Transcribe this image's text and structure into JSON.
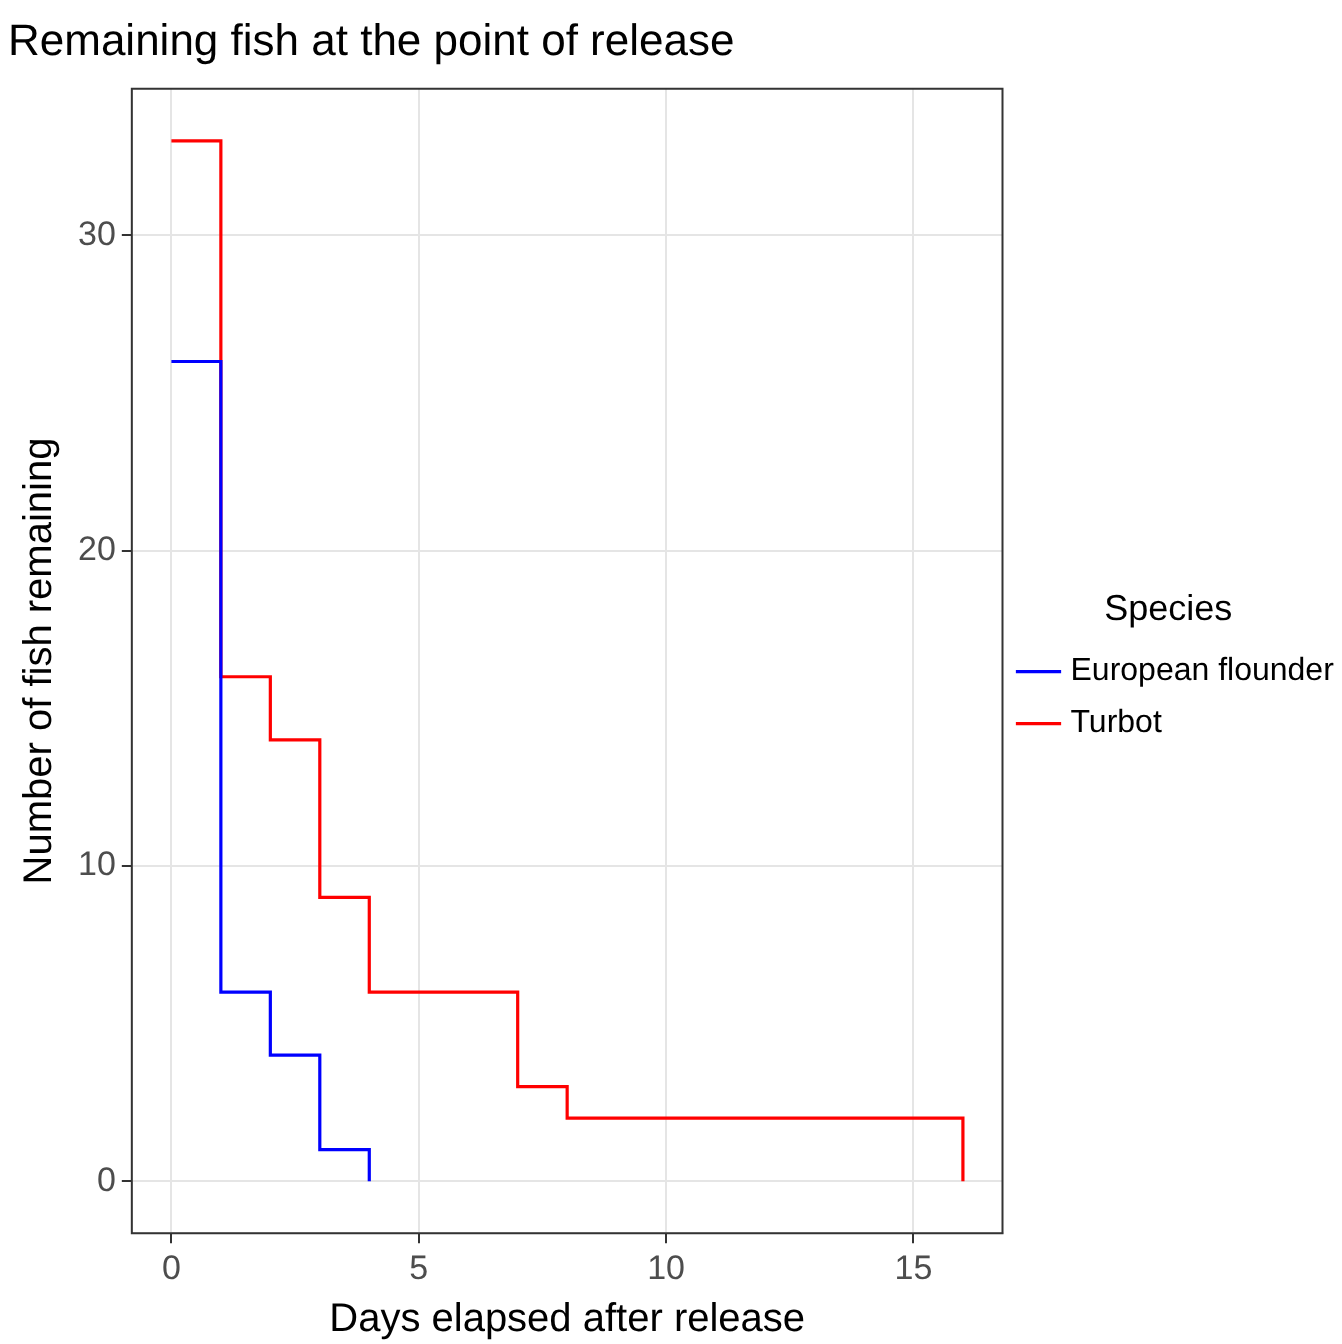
{
  "chart_data": {
    "type": "step",
    "title": "Remaining fish at the point of release",
    "xlabel": "Days elapsed after release",
    "ylabel": "Number of fish remaining",
    "legend_title": "Species",
    "series": [
      {
        "name": "European flounder",
        "color": "#0000ff",
        "x": [
          0,
          1,
          2,
          3,
          4
        ],
        "values": [
          26,
          6,
          4,
          1,
          0
        ]
      },
      {
        "name": "Turbot",
        "color": "#ff0000",
        "x": [
          0,
          1,
          2,
          3,
          4,
          7,
          8,
          16
        ],
        "values": [
          33,
          16,
          14,
          9,
          6,
          3,
          2,
          0
        ]
      }
    ],
    "xlim": [
      -0.8,
      16.8
    ],
    "xticks": [
      0,
      5,
      10,
      15
    ],
    "ylim": [
      -1.65,
      34.65
    ],
    "yticks": [
      0,
      10,
      20,
      30
    ],
    "grid": true,
    "legend": "right"
  }
}
